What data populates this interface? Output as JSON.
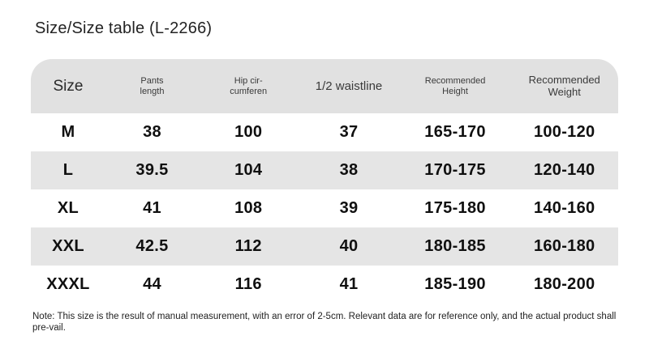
{
  "page": {
    "title": "Size/Size table (L-2266)",
    "note": "Note: This size is the result of manual measurement, with an error of 2-5cm. Relevant data are for reference only, and the actual product shall pre-vail."
  },
  "header": {
    "columns": [
      {
        "lines": [
          "Size"
        ]
      },
      {
        "lines": [
          "Pants",
          "length"
        ]
      },
      {
        "lines": [
          "Hip cir-",
          "cumferen"
        ]
      },
      {
        "lines": [
          "1/2 waistline"
        ]
      },
      {
        "lines": [
          "Recommended",
          "Height"
        ]
      },
      {
        "lines": [
          "Recommended",
          "Weight"
        ]
      }
    ]
  },
  "chart_data": {
    "type": "table",
    "title": "Size/Size table (L-2266)",
    "columns": [
      "Size",
      "Pants length",
      "Hip circumferen",
      "1/2 waistline",
      "Recommended Height",
      "Recommended Weight"
    ],
    "rows": [
      [
        "M",
        "38",
        "100",
        "37",
        "165-170",
        "100-120"
      ],
      [
        "L",
        "39.5",
        "104",
        "38",
        "170-175",
        "120-140"
      ],
      [
        "XL",
        "41",
        "108",
        "39",
        "175-180",
        "140-160"
      ],
      [
        "XXL",
        "42.5",
        "112",
        "40",
        "180-185",
        "160-180"
      ],
      [
        "XXXL",
        "44",
        "116",
        "41",
        "185-190",
        "180-200"
      ]
    ],
    "note": "Note: This size is the result of manual measurement, with an error of 2-5cm. Relevant data are for reference only, and the actual product shall pre-vail.",
    "layout": {
      "header_background": "#e1e1e1",
      "alt_row_background": "#e5e5e5",
      "zebra_rows": [
        "L",
        "XXL"
      ]
    }
  }
}
